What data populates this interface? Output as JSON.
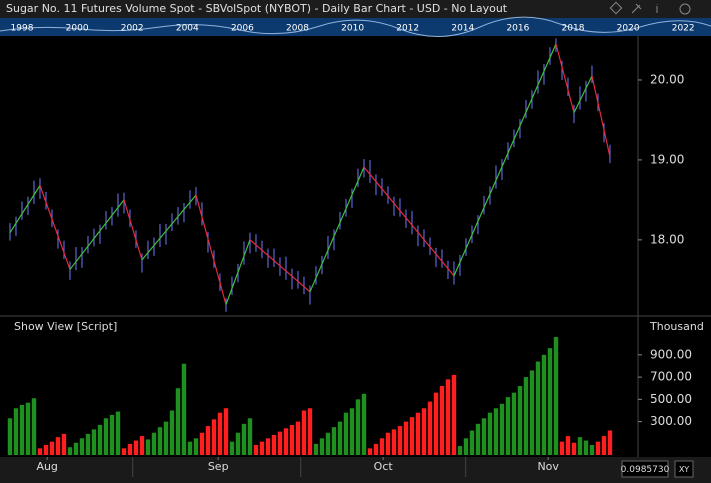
{
  "header": {
    "title": "Sugar No. 11 Futures Volume Spot - SBVolSpot (NYBOT) - Daily Bar Chart - USD - No Layout"
  },
  "overview": {
    "years": [
      "1998",
      "2000",
      "2002",
      "2004",
      "2006",
      "2008",
      "2010",
      "2012",
      "2014",
      "2016",
      "2018",
      "2020",
      "2022"
    ]
  },
  "footer": {
    "readout": "0.0985730",
    "mode": "XY"
  },
  "chart_data": [
    {
      "type": "ohlc",
      "color": "#6d7bff",
      "xlim": [
        -0.33,
        104.67
      ],
      "ylim": [
        17.06,
        20.55
      ],
      "yticks": [
        {
          "value": 18,
          "label": "18.00"
        },
        {
          "value": 19,
          "label": "19.00"
        },
        {
          "value": 20,
          "label": "20.00"
        }
      ],
      "high": [
        18.21,
        18.29,
        18.48,
        18.54,
        18.74,
        18.77,
        18.6,
        18.38,
        18.13,
        17.99,
        17.73,
        17.91,
        17.91,
        18.05,
        18.14,
        18.19,
        18.36,
        18.41,
        18.58,
        18.59,
        18.38,
        18.12,
        17.83,
        17.99,
        18.03,
        18.2,
        18.2,
        18.33,
        18.41,
        18.46,
        18.62,
        18.66,
        18.47,
        18.1,
        17.87,
        17.58,
        17.27,
        17.54,
        17.7,
        17.98,
        18.09,
        18.07,
        17.99,
        17.89,
        17.89,
        17.78,
        17.79,
        17.64,
        17.61,
        17.54,
        17.43,
        17.67,
        17.8,
        18.05,
        18.13,
        18.35,
        18.51,
        18.64,
        18.89,
        19.01,
        19.0,
        18.82,
        18.77,
        18.67,
        18.54,
        18.52,
        18.38,
        18.36,
        18.18,
        18.13,
        18.03,
        17.9,
        17.88,
        17.74,
        17.73,
        17.81,
        18.02,
        18.18,
        18.31,
        18.55,
        18.67,
        18.93,
        19.01,
        19.22,
        19.38,
        19.51,
        19.75,
        19.87,
        20.12,
        20.2,
        20.41,
        20.52,
        20.24,
        20.03,
        19.69,
        19.92,
        19.99,
        20.18,
        19.83,
        19.46,
        19.19
      ],
      "low": [
        17.99,
        18.05,
        18.25,
        18.31,
        18.45,
        18.51,
        18.38,
        18.16,
        17.89,
        17.76,
        17.5,
        17.62,
        17.65,
        17.83,
        17.92,
        17.95,
        18.13,
        18.18,
        18.29,
        18.33,
        18.16,
        17.9,
        17.59,
        17.76,
        17.8,
        17.91,
        17.94,
        18.11,
        18.19,
        18.22,
        18.39,
        18.43,
        18.18,
        17.84,
        17.65,
        17.36,
        17.1,
        17.31,
        17.47,
        17.69,
        17.83,
        17.85,
        17.77,
        17.65,
        17.66,
        17.55,
        17.5,
        17.38,
        17.39,
        17.32,
        17.19,
        17.44,
        17.57,
        17.76,
        17.87,
        18.13,
        18.29,
        18.4,
        18.66,
        18.78,
        18.71,
        18.56,
        18.55,
        18.45,
        18.3,
        18.29,
        18.15,
        18.07,
        17.92,
        17.91,
        17.81,
        17.66,
        17.65,
        17.51,
        17.44,
        17.55,
        17.8,
        17.96,
        18.07,
        18.32,
        18.44,
        18.64,
        18.75,
        19.0,
        19.16,
        19.27,
        19.52,
        19.64,
        19.83,
        19.94,
        20.19,
        20.35,
        20.0,
        19.8,
        19.46,
        19.63,
        19.73,
        19.96,
        19.61,
        19.22,
        18.96
      ],
      "zigzag": {
        "up_color": "#3fbf3f",
        "down_color": "#e8283c",
        "x": [
          0,
          5,
          10,
          19,
          22,
          31,
          36,
          40,
          50,
          59,
          74,
          91,
          94,
          97,
          100
        ],
        "values": [
          18.09,
          18.68,
          17.63,
          18.5,
          17.75,
          18.56,
          17.19,
          18.0,
          17.35,
          18.91,
          17.55,
          20.45,
          19.59,
          20.05,
          19.04
        ]
      }
    },
    {
      "type": "bar",
      "title": "Show View [Script]",
      "unit": "Thousand",
      "xlim": [
        -0.33,
        104.67
      ],
      "ylim": [
        0,
        1240
      ],
      "yticks": [
        {
          "value": 300,
          "label": "300.00"
        },
        {
          "value": 500,
          "label": "500.00"
        },
        {
          "value": 700,
          "label": "700.00"
        },
        {
          "value": 900,
          "label": "900.00"
        }
      ],
      "xticks": [
        {
          "value": 6.2,
          "label": "Aug"
        },
        {
          "value": 34.7,
          "label": "Sep"
        },
        {
          "value": 62.2,
          "label": "Oct"
        },
        {
          "value": 89.7,
          "label": "Nov"
        }
      ],
      "values": [
        330,
        420,
        450,
        470,
        510,
        60,
        90,
        120,
        160,
        190,
        70,
        110,
        150,
        190,
        230,
        270,
        330,
        360,
        390,
        60,
        100,
        130,
        170,
        140,
        200,
        250,
        300,
        400,
        600,
        820,
        120,
        150,
        200,
        260,
        320,
        380,
        420,
        120,
        200,
        280,
        330,
        90,
        120,
        150,
        180,
        210,
        240,
        270,
        300,
        400,
        420,
        100,
        150,
        200,
        250,
        300,
        380,
        420,
        500,
        550,
        60,
        100,
        150,
        200,
        230,
        260,
        300,
        340,
        380,
        420,
        480,
        560,
        620,
        680,
        720,
        80,
        150,
        220,
        280,
        330,
        380,
        420,
        460,
        520,
        560,
        620,
        700,
        760,
        840,
        900,
        960,
        1060,
        120,
        170,
        110,
        160,
        130,
        90,
        120,
        170,
        220
      ],
      "colors": [
        "#1f8f1f",
        "#1f8f1f",
        "#1f8f1f",
        "#1f8f1f",
        "#1f8f1f",
        "#ff1f1f",
        "#ff1f1f",
        "#ff1f1f",
        "#ff1f1f",
        "#ff1f1f",
        "#1f8f1f",
        "#1f8f1f",
        "#1f8f1f",
        "#1f8f1f",
        "#1f8f1f",
        "#1f8f1f",
        "#1f8f1f",
        "#1f8f1f",
        "#1f8f1f",
        "#ff1f1f",
        "#ff1f1f",
        "#ff1f1f",
        "#ff1f1f",
        "#1f8f1f",
        "#1f8f1f",
        "#1f8f1f",
        "#1f8f1f",
        "#1f8f1f",
        "#1f8f1f",
        "#1f8f1f",
        "#1f8f1f",
        "#1f8f1f",
        "#ff1f1f",
        "#ff1f1f",
        "#ff1f1f",
        "#ff1f1f",
        "#ff1f1f",
        "#1f8f1f",
        "#1f8f1f",
        "#1f8f1f",
        "#1f8f1f",
        "#ff1f1f",
        "#ff1f1f",
        "#ff1f1f",
        "#ff1f1f",
        "#ff1f1f",
        "#ff1f1f",
        "#ff1f1f",
        "#ff1f1f",
        "#ff1f1f",
        "#ff1f1f",
        "#1f8f1f",
        "#1f8f1f",
        "#1f8f1f",
        "#1f8f1f",
        "#1f8f1f",
        "#1f8f1f",
        "#1f8f1f",
        "#1f8f1f",
        "#1f8f1f",
        "#ff1f1f",
        "#ff1f1f",
        "#ff1f1f",
        "#ff1f1f",
        "#ff1f1f",
        "#ff1f1f",
        "#ff1f1f",
        "#ff1f1f",
        "#ff1f1f",
        "#ff1f1f",
        "#ff1f1f",
        "#ff1f1f",
        "#ff1f1f",
        "#ff1f1f",
        "#ff1f1f",
        "#1f8f1f",
        "#1f8f1f",
        "#1f8f1f",
        "#1f8f1f",
        "#1f8f1f",
        "#1f8f1f",
        "#1f8f1f",
        "#1f8f1f",
        "#1f8f1f",
        "#1f8f1f",
        "#1f8f1f",
        "#1f8f1f",
        "#1f8f1f",
        "#1f8f1f",
        "#1f8f1f",
        "#1f8f1f",
        "#1f8f1f",
        "#ff1f1f",
        "#ff1f1f",
        "#ff1f1f",
        "#1f8f1f",
        "#1f8f1f",
        "#1f8f1f",
        "#ff1f1f",
        "#ff1f1f",
        "#ff1f1f"
      ]
    }
  ]
}
